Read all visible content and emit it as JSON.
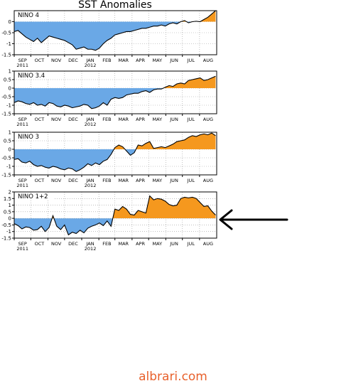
{
  "page_title": "SST Anomalies",
  "watermark": "albrari.com",
  "colors": {
    "negative_fill": "#6aa8e6",
    "positive_fill": "#f5981e",
    "line": "#000000",
    "grid": "#999999",
    "arrow": "#000000"
  },
  "month_labels": [
    "SEP",
    "OCT",
    "NOV",
    "DEC",
    "JAN",
    "FEB",
    "MAR",
    "APR",
    "MAY",
    "JUN",
    "JUL",
    "AUG"
  ],
  "year_labels": [
    {
      "text": "2011",
      "month": "SEP"
    },
    {
      "text": "2012",
      "month": "JAN"
    }
  ],
  "annotation": {
    "type": "arrow",
    "points_to": "NINO 1+2"
  },
  "chart_data": [
    {
      "type": "area",
      "name": "NINO 4",
      "title": "NINO 4",
      "ylim": [
        -1.5,
        0.5
      ],
      "yticks": [
        -1.5,
        -1,
        -0.5,
        0
      ],
      "ytick_labels": [
        "-1.5",
        "-1",
        "-0.5",
        "0"
      ],
      "grid": true,
      "x_start": "2011-09-01",
      "x_end": "2012-09-01",
      "x": [
        "2011-09-01",
        "2011-09-08",
        "2011-09-15",
        "2011-09-22",
        "2011-09-29",
        "2011-10-06",
        "2011-10-13",
        "2011-10-20",
        "2011-10-27",
        "2011-11-03",
        "2011-11-10",
        "2011-11-17",
        "2011-11-24",
        "2011-12-01",
        "2011-12-08",
        "2011-12-15",
        "2011-12-22",
        "2011-12-29",
        "2012-01-05",
        "2012-01-12",
        "2012-01-19",
        "2012-01-26",
        "2012-02-02",
        "2012-02-09",
        "2012-02-16",
        "2012-02-23",
        "2012-03-01",
        "2012-03-08",
        "2012-03-15",
        "2012-03-22",
        "2012-03-29",
        "2012-04-05",
        "2012-04-12",
        "2012-04-19",
        "2012-04-26",
        "2012-05-03",
        "2012-05-10",
        "2012-05-17",
        "2012-05-24",
        "2012-05-31",
        "2012-06-07",
        "2012-06-14",
        "2012-06-21",
        "2012-06-28",
        "2012-07-05",
        "2012-07-12",
        "2012-07-19",
        "2012-07-26",
        "2012-08-02",
        "2012-08-09",
        "2012-08-16",
        "2012-08-23",
        "2012-08-30"
      ],
      "values": [
        -0.45,
        -0.4,
        -0.55,
        -0.7,
        -0.8,
        -0.9,
        -0.75,
        -0.95,
        -0.8,
        -0.65,
        -0.7,
        -0.75,
        -0.8,
        -0.85,
        -0.95,
        -1.05,
        -1.25,
        -1.2,
        -1.15,
        -1.25,
        -1.25,
        -1.3,
        -1.2,
        -1.0,
        -0.85,
        -0.75,
        -0.6,
        -0.55,
        -0.5,
        -0.45,
        -0.45,
        -0.4,
        -0.35,
        -0.3,
        -0.3,
        -0.25,
        -0.2,
        -0.2,
        -0.15,
        -0.2,
        -0.1,
        -0.05,
        -0.1,
        0.0,
        0.05,
        -0.05,
        0.0,
        0.02,
        0.0,
        0.1,
        0.2,
        0.35,
        0.5
      ]
    },
    {
      "type": "area",
      "name": "NINO 3.4",
      "title": "NINO 3.4",
      "ylim": [
        -1.5,
        1.0
      ],
      "yticks": [
        -1.5,
        -1,
        -0.5,
        0,
        0.5,
        1
      ],
      "ytick_labels": [
        "-1.5",
        "-1",
        "-0.5",
        "0",
        "0.5",
        "1"
      ],
      "grid": true,
      "x_start": "2011-09-01",
      "x_end": "2012-09-01",
      "x": [
        "2011-09-01",
        "2011-09-08",
        "2011-09-15",
        "2011-09-22",
        "2011-09-29",
        "2011-10-06",
        "2011-10-13",
        "2011-10-20",
        "2011-10-27",
        "2011-11-03",
        "2011-11-10",
        "2011-11-17",
        "2011-11-24",
        "2011-12-01",
        "2011-12-08",
        "2011-12-15",
        "2011-12-22",
        "2011-12-29",
        "2012-01-05",
        "2012-01-12",
        "2012-01-19",
        "2012-01-26",
        "2012-02-02",
        "2012-02-09",
        "2012-02-16",
        "2012-02-23",
        "2012-03-01",
        "2012-03-08",
        "2012-03-15",
        "2012-03-22",
        "2012-03-29",
        "2012-04-05",
        "2012-04-12",
        "2012-04-19",
        "2012-04-26",
        "2012-05-03",
        "2012-05-10",
        "2012-05-17",
        "2012-05-24",
        "2012-05-31",
        "2012-06-07",
        "2012-06-14",
        "2012-06-21",
        "2012-06-28",
        "2012-07-05",
        "2012-07-12",
        "2012-07-19",
        "2012-07-26",
        "2012-08-02",
        "2012-08-09",
        "2012-08-16",
        "2012-08-23",
        "2012-08-30"
      ],
      "values": [
        -0.85,
        -0.75,
        -0.8,
        -0.9,
        -0.95,
        -0.85,
        -1.0,
        -0.95,
        -1.05,
        -0.85,
        -0.9,
        -1.05,
        -1.1,
        -1.0,
        -1.05,
        -1.15,
        -1.1,
        -1.05,
        -0.95,
        -1.0,
        -1.2,
        -1.15,
        -1.05,
        -0.85,
        -1.0,
        -0.65,
        -0.55,
        -0.6,
        -0.55,
        -0.4,
        -0.35,
        -0.3,
        -0.3,
        -0.2,
        -0.15,
        -0.25,
        -0.1,
        -0.05,
        -0.05,
        0.05,
        0.15,
        0.1,
        0.25,
        0.3,
        0.25,
        0.45,
        0.5,
        0.55,
        0.6,
        0.45,
        0.5,
        0.6,
        0.7
      ]
    },
    {
      "type": "area",
      "name": "NINO 3",
      "title": "NINO 3",
      "ylim": [
        -1.5,
        1.0
      ],
      "yticks": [
        -1.5,
        -1,
        -0.5,
        0,
        0.5,
        1
      ],
      "ytick_labels": [
        "-1.5",
        "-1",
        "-0.5",
        "0",
        "0.5",
        "1"
      ],
      "grid": true,
      "x_start": "2011-09-01",
      "x_end": "2012-09-01",
      "x": [
        "2011-09-01",
        "2011-09-08",
        "2011-09-15",
        "2011-09-22",
        "2011-09-29",
        "2011-10-06",
        "2011-10-13",
        "2011-10-20",
        "2011-10-27",
        "2011-11-03",
        "2011-11-10",
        "2011-11-17",
        "2011-11-24",
        "2011-12-01",
        "2011-12-08",
        "2011-12-15",
        "2011-12-22",
        "2011-12-29",
        "2012-01-05",
        "2012-01-12",
        "2012-01-19",
        "2012-01-26",
        "2012-02-02",
        "2012-02-09",
        "2012-02-16",
        "2012-02-23",
        "2012-03-01",
        "2012-03-08",
        "2012-03-15",
        "2012-03-22",
        "2012-03-29",
        "2012-04-05",
        "2012-04-12",
        "2012-04-19",
        "2012-04-26",
        "2012-05-03",
        "2012-05-10",
        "2012-05-17",
        "2012-05-24",
        "2012-05-31",
        "2012-06-07",
        "2012-06-14",
        "2012-06-21",
        "2012-06-28",
        "2012-07-05",
        "2012-07-12",
        "2012-07-19",
        "2012-07-26",
        "2012-08-02",
        "2012-08-09",
        "2012-08-16",
        "2012-08-23",
        "2012-08-30"
      ],
      "values": [
        -0.6,
        -0.55,
        -0.75,
        -0.8,
        -0.7,
        -0.9,
        -1.0,
        -0.95,
        -1.05,
        -1.1,
        -1.0,
        -1.05,
        -1.15,
        -1.2,
        -1.1,
        -1.15,
        -1.3,
        -1.2,
        -1.05,
        -0.85,
        -0.95,
        -0.8,
        -0.9,
        -0.7,
        -0.6,
        -0.3,
        0.1,
        0.25,
        0.15,
        -0.1,
        -0.35,
        -0.2,
        0.25,
        0.2,
        0.35,
        0.45,
        0.05,
        0.1,
        0.15,
        0.1,
        0.2,
        0.3,
        0.45,
        0.5,
        0.55,
        0.7,
        0.8,
        0.75,
        0.85,
        0.9,
        0.85,
        0.95,
        0.8
      ]
    },
    {
      "type": "area",
      "name": "NINO 1+2",
      "title": "NINO 1+2",
      "ylim": [
        -1.5,
        2.0
      ],
      "yticks": [
        -1.5,
        -1,
        -0.5,
        0,
        0.5,
        1,
        1.5,
        2
      ],
      "ytick_labels": [
        "-1.5",
        "-1",
        "-0.5",
        "0",
        "0.5",
        "1",
        "1.5",
        "2"
      ],
      "grid": true,
      "x_start": "2011-09-01",
      "x_end": "2012-09-01",
      "x": [
        "2011-09-01",
        "2011-09-08",
        "2011-09-15",
        "2011-09-22",
        "2011-09-29",
        "2011-10-06",
        "2011-10-13",
        "2011-10-20",
        "2011-10-27",
        "2011-11-03",
        "2011-11-10",
        "2011-11-17",
        "2011-11-24",
        "2011-12-01",
        "2011-12-08",
        "2011-12-15",
        "2011-12-22",
        "2011-12-29",
        "2012-01-05",
        "2012-01-12",
        "2012-01-19",
        "2012-01-26",
        "2012-02-02",
        "2012-02-09",
        "2012-02-16",
        "2012-02-23",
        "2012-03-01",
        "2012-03-08",
        "2012-03-15",
        "2012-03-22",
        "2012-03-29",
        "2012-04-05",
        "2012-04-12",
        "2012-04-19",
        "2012-04-26",
        "2012-05-03",
        "2012-05-10",
        "2012-05-17",
        "2012-05-24",
        "2012-05-31",
        "2012-06-07",
        "2012-06-14",
        "2012-06-21",
        "2012-06-28",
        "2012-07-05",
        "2012-07-12",
        "2012-07-19",
        "2012-07-26",
        "2012-08-02",
        "2012-08-09",
        "2012-08-16",
        "2012-08-23",
        "2012-08-30"
      ],
      "values": [
        -0.4,
        -0.55,
        -0.8,
        -0.65,
        -0.7,
        -0.9,
        -0.85,
        -0.6,
        -1.0,
        -0.7,
        0.2,
        -0.6,
        -0.85,
        -0.5,
        -1.25,
        -1.05,
        -1.15,
        -0.9,
        -1.1,
        -0.75,
        -0.6,
        -0.5,
        -0.35,
        -0.55,
        -0.2,
        -0.6,
        0.7,
        0.6,
        0.9,
        0.7,
        0.3,
        0.25,
        0.6,
        0.5,
        0.4,
        1.7,
        1.4,
        1.5,
        1.45,
        1.3,
        1.05,
        0.95,
        1.0,
        1.5,
        1.6,
        1.55,
        1.6,
        1.5,
        1.2,
        0.9,
        0.95,
        0.55,
        0.25
      ]
    }
  ]
}
